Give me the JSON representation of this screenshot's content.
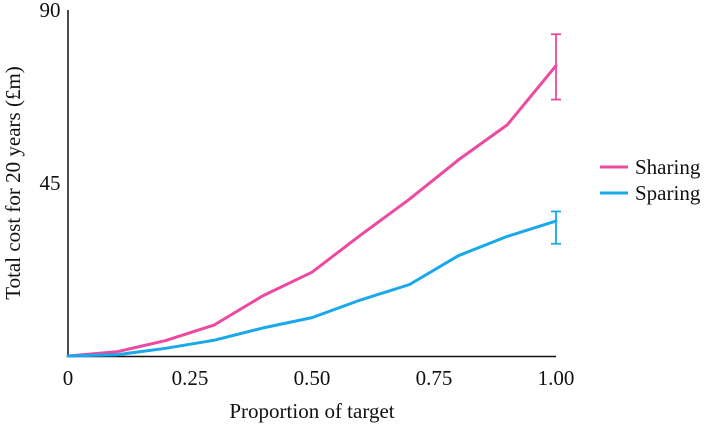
{
  "chart_data": {
    "type": "line",
    "xlabel": "Proportion of target",
    "ylabel": "Total cost for 20 years (£m)",
    "xlim": [
      0,
      1
    ],
    "ylim": [
      0,
      90
    ],
    "xticks": [
      {
        "value": 0,
        "label": "0"
      },
      {
        "value": 0.25,
        "label": "0.25"
      },
      {
        "value": 0.5,
        "label": "0.50"
      },
      {
        "value": 0.75,
        "label": "0.75"
      },
      {
        "value": 1,
        "label": "1.00"
      }
    ],
    "yticks": [
      {
        "value": 45,
        "label": "45"
      },
      {
        "value": 90,
        "label": "90"
      }
    ],
    "grid": false,
    "legend_position": "right",
    "x": [
      0,
      0.1,
      0.2,
      0.3,
      0.4,
      0.5,
      0.6,
      0.7,
      0.8,
      0.9,
      1.0
    ],
    "series": [
      {
        "name": "Sharing",
        "color": "#ec4aa0",
        "values": [
          0,
          1.1,
          4,
          8.1,
          15.7,
          21.8,
          31.5,
          40.8,
          51.0,
          60.1,
          75.5
        ],
        "error": {
          "x": 1.0,
          "low": 66.7,
          "high": 83.7
        }
      },
      {
        "name": "Sparing",
        "color": "#1aa8ec",
        "values": [
          0,
          0.3,
          2.0,
          4.1,
          7.3,
          10.0,
          14.6,
          18.6,
          26.1,
          31.1,
          35.1
        ],
        "error": {
          "x": 1.0,
          "low": 29.2,
          "high": 37.6
        }
      }
    ]
  }
}
